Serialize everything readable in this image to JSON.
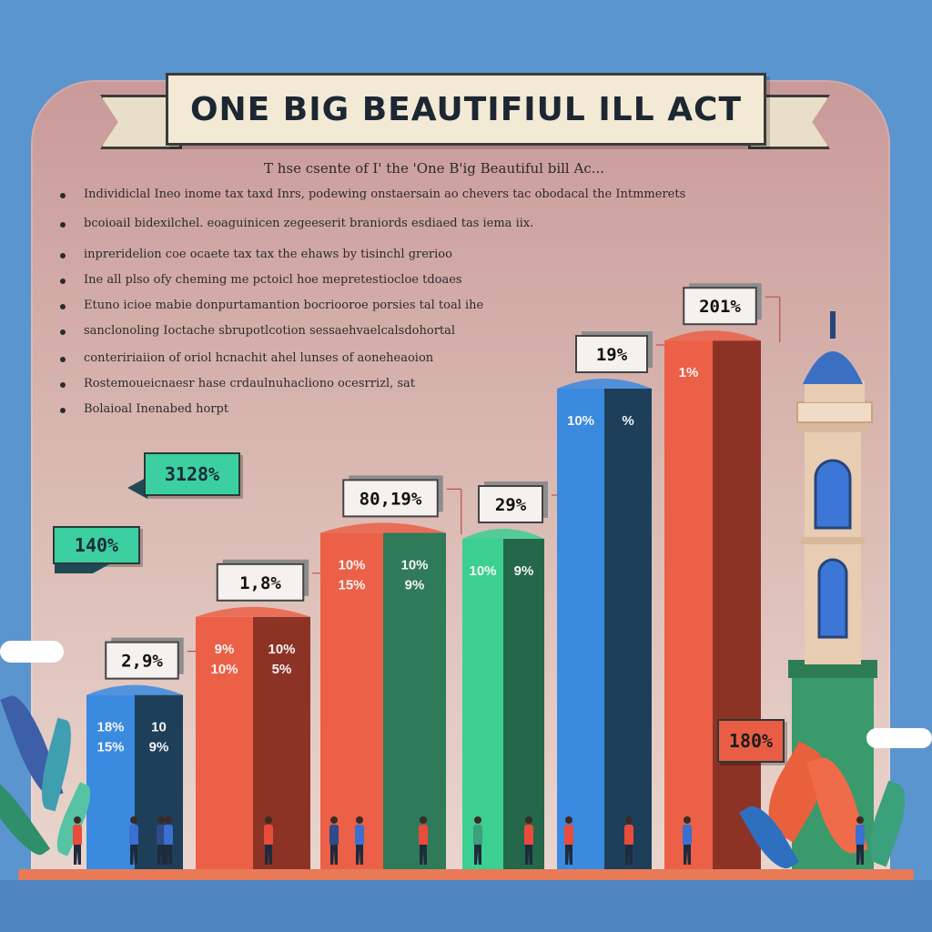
{
  "title": "ONE BIG BEAUTIFIUL ILL ACT",
  "subtitle": "T hse csente of I' the  'One B'ig Beautiful bill Ac...",
  "bullets": [
    "Individiclal Ineo inome tax taxd Inrs, podewing onstaersain ao chevers tac obodacal the Intmmerets",
    "bcoioail bidexilchel. eoaguinicen zegeeserit braniords esdiaed tas iema iix.",
    "inpreridelion coe ocaete tax tax the ehaws by tisinchl grerioo",
    "Ine all plso ofy cheming me pctoicl hoe mepretestiocloe tdoaes",
    "Etuno icioe mabie donpurtamantion bocriooroe porsies tal toal ihe",
    "sanclonoling Ioctache sbrupotlcotion sessaehvaelcalsdohortal",
    "conteririaiion of oriol hcnachit ahel lunses of aoneheaoion",
    "Rostemoueicnaesr hase crdaulnuhacliono ocesrrizl,  sat",
    "Bolaioal Inenabed horpt"
  ],
  "colors": {
    "blue": "#3a8ae0",
    "blue_side": "#1e3f5a",
    "red": "#eb6046",
    "red_side": "#8d3326",
    "green": "#2f7a58",
    "mint": "#3ccf92"
  },
  "tags": {
    "left_upper": "3128%",
    "left_lower": "140%",
    "right_lower": "180%"
  },
  "chart_data": {
    "type": "bar",
    "title": "ONE BIG BEAUTIFIUL ILL ACT",
    "xlabel": "",
    "ylabel": "",
    "grid": false,
    "legend": "none",
    "bars": [
      {
        "value": 29,
        "label": "2,9%",
        "front_text": [
          "18%",
          "15%"
        ],
        "side_text": [
          "10",
          "9%"
        ],
        "color": "blue"
      },
      {
        "value": 42,
        "label": "1,8%",
        "front_text": [
          "9%",
          "10%"
        ],
        "side_text": [
          "10%",
          "5%"
        ],
        "color": "red"
      },
      {
        "value": 56,
        "label": "80,19%",
        "front_text": [
          "10%",
          "15%"
        ],
        "side_text": [
          "10%",
          "9%"
        ],
        "color": "red_green"
      },
      {
        "value": 55,
        "label": "29%",
        "front_text": [
          "10%"
        ],
        "side_text": [
          "9%"
        ],
        "color": "mint"
      },
      {
        "value": 80,
        "label": "19%",
        "front_text": [
          "10%"
        ],
        "side_text": [
          "%"
        ],
        "color": "blue"
      },
      {
        "value": 88,
        "label": "201%",
        "front_text": [
          "1%"
        ],
        "side_text": [],
        "color": "red"
      }
    ]
  },
  "tower_label": "",
  "people_count": 14
}
